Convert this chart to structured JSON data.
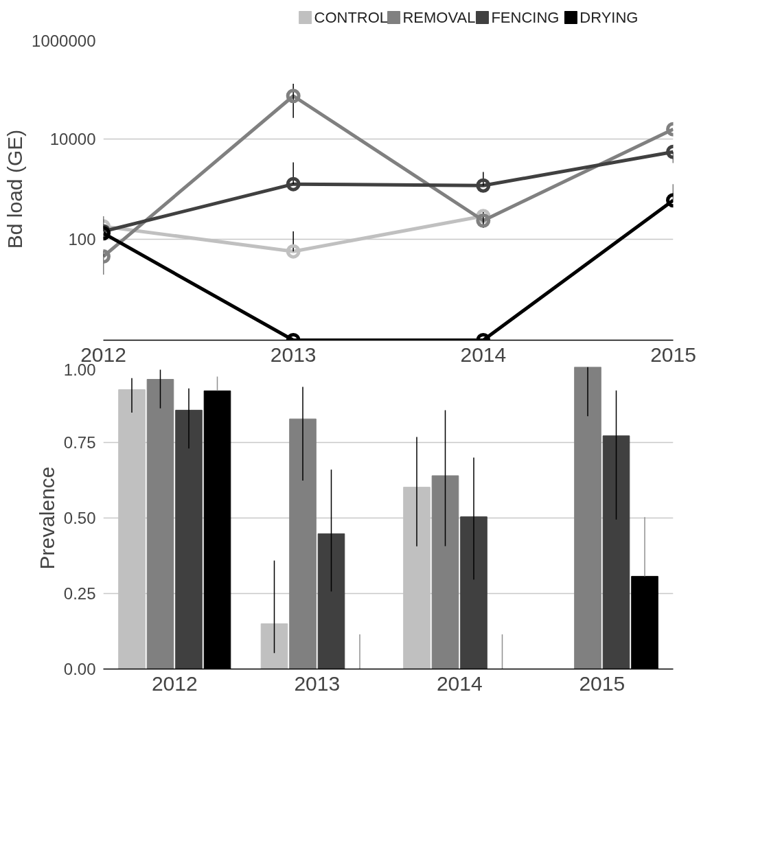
{
  "chart_data": [
    {
      "type": "line",
      "ylabel": "Bd load (GE)",
      "x": [
        2012,
        2013,
        2014,
        2015
      ],
      "xlim": [
        2012,
        2015
      ],
      "xticks": [
        2012,
        2013,
        2014,
        2015
      ],
      "log": "y",
      "ylim": [
        1,
        1000000
      ],
      "yticks": [
        {
          "value": 1,
          "label": null
        },
        100,
        10000,
        1000000
      ],
      "grid": "y",
      "legend": "top right",
      "marker": "circle",
      "line_style": "solid",
      "series": [
        {
          "name": "CONTROL",
          "color": "#c0c0c0",
          "values": [
            182,
            58,
            292,
            null
          ],
          "errors": [
            null,
            [
              58,
              145
            ],
            null,
            null
          ]
        },
        {
          "name": "REMOVAL",
          "color": "#808080",
          "values": [
            46,
            71000,
            238,
            15500
          ],
          "errors": [
            [
              20,
              60
            ],
            [
              26000,
              124000
            ],
            [
              170,
              350
            ],
            null
          ]
        },
        {
          "name": "FENCING",
          "color": "#404040",
          "values": [
            145,
            1260,
            1180,
            5500
          ],
          "errors": [
            [
              145,
              290
            ],
            [
              1260,
              3400
            ],
            [
              1180,
              2200
            ],
            [
              3300,
              5500
            ]
          ]
        },
        {
          "name": "DRYING",
          "color": "#000000",
          "values": [
            133,
            1,
            1,
            600
          ],
          "errors": [
            null,
            null,
            null,
            [
              600,
              1260
            ]
          ]
        }
      ]
    },
    {
      "type": "bar",
      "ylabel": "Prevalence",
      "categories": [
        "2012",
        "2013",
        "2014",
        "2015"
      ],
      "ylim": [
        0,
        1
      ],
      "yticks": [
        {
          "value": 0,
          "label": "0.00"
        },
        {
          "value": 0.25,
          "label": "0.25"
        },
        {
          "value": 0.5,
          "label": "0.50"
        },
        {
          "value": 0.75,
          "label": "0.75"
        },
        {
          "value": 1,
          "label": "1.00"
        }
      ],
      "grid": "y",
      "series": [
        {
          "color": "#c0c0c0",
          "values": [
            0.925,
            0.15,
            0.602,
            0
          ],
          "errors": [
            [
              0.849,
              0.963
            ],
            [
              0.053,
              0.359
            ],
            [
              0.406,
              0.768
            ],
            null
          ]
        },
        {
          "color": "#808080",
          "values": [
            0.959,
            0.828,
            0.64,
            1.0
          ],
          "errors": [
            [
              0.863,
              0.991
            ],
            [
              0.624,
              0.934
            ],
            [
              0.407,
              0.857
            ],
            [
              0.837,
              1.0
            ]
          ]
        },
        {
          "color": "#404040",
          "values": [
            0.857,
            0.448,
            0.504,
            0.772
          ],
          "errors": [
            [
              0.73,
              0.929
            ],
            [
              0.257,
              0.66
            ],
            [
              0.296,
              0.7
            ],
            [
              0.495,
              0.922
            ]
          ]
        },
        {
          "color": "#000000",
          "values": [
            0.921,
            0,
            0,
            0.307
          ],
          "errors": [
            [
              0.921,
              0.968
            ],
            [
              0,
              0.115
            ],
            [
              0,
              0.115
            ],
            [
              0.307,
              0.503
            ]
          ]
        }
      ]
    }
  ]
}
